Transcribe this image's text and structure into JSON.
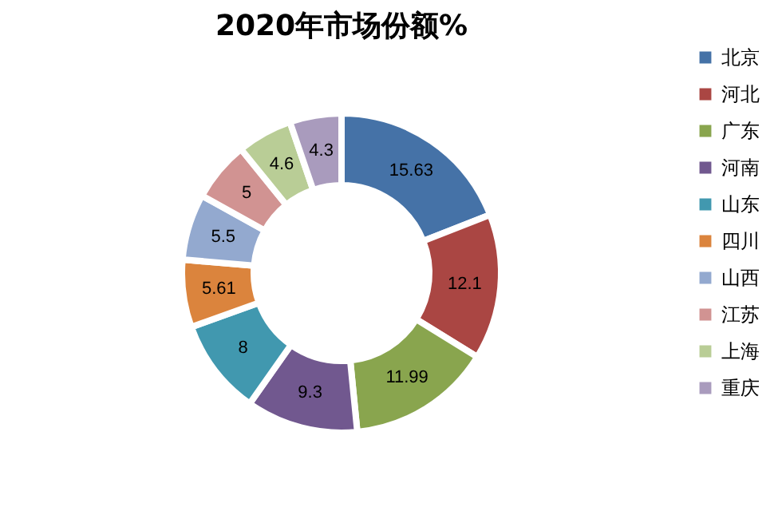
{
  "chart_data": {
    "type": "donut",
    "title": "2020年市场份额%",
    "categories": [
      "北京",
      "河北",
      "广东",
      "河南",
      "山东",
      "四川",
      "山西",
      "江苏",
      "上海",
      "重庆"
    ],
    "values": [
      15.63,
      12.1,
      11.99,
      9.3,
      8,
      5.61,
      5.5,
      5,
      4.6,
      4.3
    ],
    "colors": [
      "#4572a7",
      "#aa4643",
      "#89a54e",
      "#71588f",
      "#4198af",
      "#db843d",
      "#93a9cf",
      "#d19392",
      "#b9cd96",
      "#a99bbd"
    ],
    "data_labels": true,
    "legend": "right"
  }
}
